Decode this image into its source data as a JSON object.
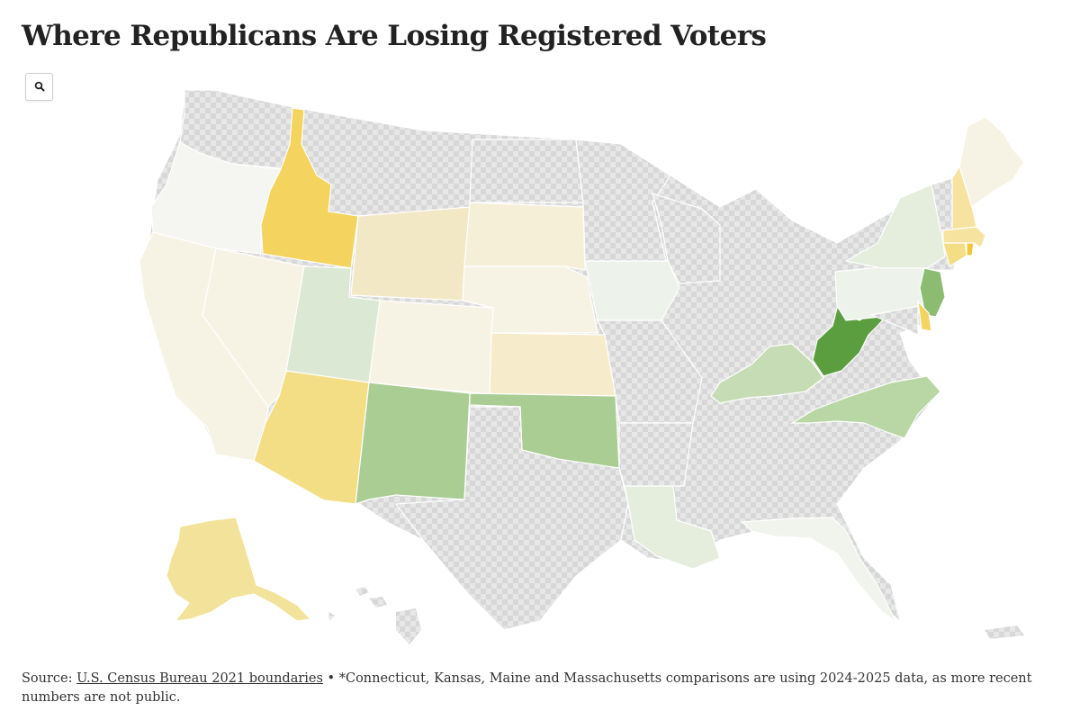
{
  "title": "Where Republicans Are Losing Registered Voters",
  "zoom_icon": "search-icon",
  "colors": {
    "no_data": "#e3e3e3",
    "strong_gain": "#f4d35e",
    "mid_gain": "#f3e29a",
    "light_gain": "#f6efcf",
    "faint_gain": "#f7f3e4",
    "neutral": "#f5f5f2",
    "faint_loss": "#edf2ea",
    "light_loss": "#dbe8d3",
    "mid_loss": "#b3d3a0",
    "strong_loss": "#5b9e3f"
  },
  "footer": {
    "source_label": "Source: ",
    "source_link": "U.S. Census Bureau 2021 boundaries",
    "separator": " • ",
    "note": "*Connecticut, Kansas, Maine and Massachusetts comparisons are using 2024-2025 data, as more recent numbers are not public."
  }
}
